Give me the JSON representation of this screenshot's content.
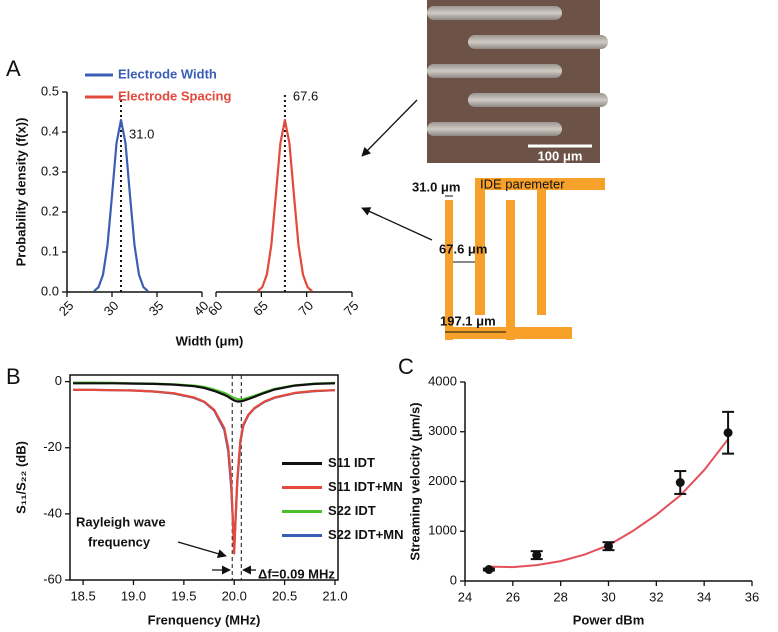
{
  "panel_labels": [
    "A",
    "B",
    "C"
  ],
  "micrograph": {
    "scale_bar": "100 μm"
  },
  "ide_diagram": {
    "title": "IDE paremeter",
    "width": "31.0 μm",
    "spacing": "67.6 μm",
    "period": "197.1 μm"
  },
  "chart_data": [
    {
      "type": "line",
      "xlabel": "Width (μm)",
      "ylabel": "Probability density (f(x))",
      "xlim": [
        25,
        75
      ],
      "xbreak": [
        40,
        60
      ],
      "xticks": [
        25,
        30,
        35,
        40,
        60,
        65,
        70,
        75
      ],
      "ylim": [
        0,
        0.5
      ],
      "yticks": [
        {
          "value": 0,
          "label": "0.0"
        },
        0.1,
        0.2,
        0.3,
        0.4,
        0.5
      ],
      "legend": "upper left",
      "series": [
        {
          "name": "Electrode Width",
          "color": "#3b5eb4",
          "x": [
            28,
            28.5,
            29,
            29.5,
            30,
            30.5,
            31,
            31.5,
            32,
            32.5,
            33,
            33.5,
            34
          ],
          "values": [
            0.002,
            0.012,
            0.043,
            0.117,
            0.241,
            0.372,
            0.43,
            0.372,
            0.241,
            0.117,
            0.043,
            0.012,
            0.002
          ]
        },
        {
          "name": "Electrode Spacing",
          "color": "#e4493b",
          "x": [
            64.6,
            65.1,
            65.6,
            66.1,
            66.6,
            67.1,
            67.6,
            68.1,
            68.6,
            69.1,
            69.6,
            70.1,
            70.6
          ],
          "values": [
            0.002,
            0.012,
            0.043,
            0.117,
            0.241,
            0.372,
            0.43,
            0.372,
            0.241,
            0.117,
            0.043,
            0.012,
            0.002
          ]
        }
      ],
      "markers": [
        {
          "x": 31.0,
          "label": "31.0"
        },
        {
          "x": 67.6,
          "label": "67.6"
        }
      ]
    },
    {
      "type": "line",
      "xlabel": "Frenquency (MHz)",
      "ylabel": "S₁₁/S₂₂ (dB)",
      "xlim": [
        18.37,
        21.03
      ],
      "xticks": [
        18.5,
        {
          "value": 19,
          "label": "19.0"
        },
        19.5,
        {
          "value": 20,
          "label": "20.0"
        },
        20.5,
        {
          "value": 21,
          "label": "21.0"
        }
      ],
      "ylim": [
        -60,
        2
      ],
      "yticks": [
        0,
        -20,
        -40,
        -60
      ],
      "legend": "center right",
      "frame": true,
      "x": [
        18.4,
        18.6,
        18.8,
        19.0,
        19.2,
        19.4,
        19.6,
        19.7,
        19.8,
        19.9,
        19.94,
        19.97,
        20.0,
        20.03,
        20.06,
        20.09,
        20.14,
        20.2,
        20.3,
        20.4,
        20.6,
        20.8,
        21.0
      ],
      "series": [
        {
          "name": "S11 IDT",
          "color": "#111111",
          "values": [
            -0.5,
            -0.5,
            -0.5,
            -0.6,
            -0.7,
            -0.9,
            -1.4,
            -1.9,
            -2.8,
            -4,
            -4.6,
            -5.2,
            -5.7,
            -6,
            -6,
            -5.8,
            -5.3,
            -4.6,
            -3.4,
            -2.4,
            -1.2,
            -0.7,
            -0.5
          ]
        },
        {
          "name": "S11 IDT+MN",
          "color": "#e4493b",
          "values": [
            -2.5,
            -2.5,
            -2.6,
            -2.7,
            -3.0,
            -3.5,
            -4.8,
            -6,
            -8.5,
            -14,
            -20,
            -30,
            -52,
            -30,
            -18,
            -13,
            -10,
            -8,
            -6,
            -4.8,
            -3.4,
            -2.8,
            -2.6
          ]
        },
        {
          "name": "S22 IDT",
          "color": "#4cc02c",
          "values": [
            -0.3,
            -0.3,
            -0.4,
            -0.5,
            -0.6,
            -0.8,
            -1.2,
            -1.6,
            -2.4,
            -3.4,
            -4,
            -4.5,
            -5,
            -5.3,
            -5.4,
            -5.3,
            -4.9,
            -4.3,
            -3.2,
            -2.2,
            -1.1,
            -0.6,
            -0.4
          ]
        },
        {
          "name": "S22 IDT+MN",
          "color": "#3b5eb4",
          "values": [
            -2.5,
            -2.5,
            -2.6,
            -2.7,
            -3.0,
            -3.6,
            -4.9,
            -6.1,
            -8.7,
            -14.5,
            -21,
            -32,
            -50,
            -31,
            -18.5,
            -13.3,
            -10.2,
            -8.1,
            -6.1,
            -4.9,
            -3.5,
            -2.9,
            -2.6
          ]
        }
      ],
      "vlines": [
        19.98,
        20.07
      ],
      "annotations": [
        "Rayleigh wave",
        "frequency",
        "Δf=0.09 MHz"
      ]
    },
    {
      "type": "scatter",
      "xlabel": "Power dBm",
      "ylabel": "Streaming velocity (μm/s)",
      "xlim": [
        24,
        36
      ],
      "xticks": [
        24,
        26,
        28,
        30,
        32,
        34,
        36
      ],
      "ylim": [
        0,
        4000
      ],
      "yticks": [
        0,
        1000,
        2000,
        3000,
        4000
      ],
      "color": "#111111",
      "x": [
        25,
        27,
        30,
        33,
        35
      ],
      "values": [
        230,
        520,
        700,
        1980,
        2980
      ],
      "errors": [
        20,
        80,
        80,
        230,
        420
      ],
      "fit": {
        "color": "#e4505c",
        "x": [
          25,
          26,
          27,
          28,
          29,
          30,
          31,
          32,
          33,
          34,
          35
        ],
        "values": [
          290,
          280,
          320,
          400,
          530,
          720,
          1000,
          1330,
          1720,
          2230,
          2850
        ]
      }
    }
  ]
}
